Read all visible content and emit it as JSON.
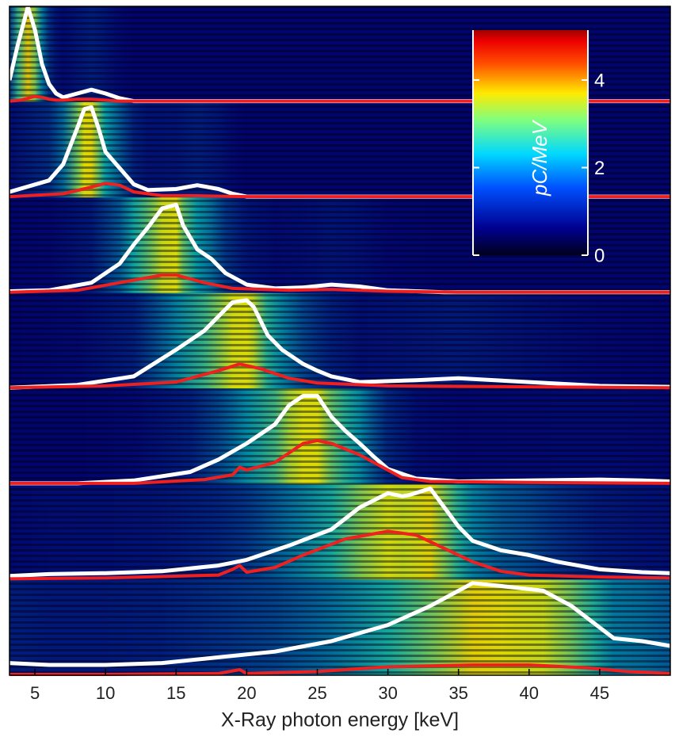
{
  "chart_data": {
    "type": "spectra",
    "xlabel": "X-Ray photon energy [keV]",
    "xlim": [
      3.2,
      50
    ],
    "xticks": [
      5,
      10,
      15,
      20,
      25,
      30,
      35,
      40,
      45
    ],
    "panel_ylim": [
      0,
      100
    ],
    "colorbar": {
      "label": "pC/MeV",
      "clim": [
        0,
        5.14
      ],
      "ticks": [
        0,
        2,
        4
      ]
    },
    "panels": [
      {
        "series": [
          {
            "color": "#ffffff",
            "x": [
              3.2,
              3.8,
              4.5,
              5,
              5.5,
              6,
              6.5,
              7,
              8,
              9,
              10,
              11,
              12,
              50
            ],
            "values": [
              22,
              60,
              99,
              75,
              39,
              18,
              8,
              4,
              8,
              12,
              8,
              3,
              0,
              0
            ]
          },
          {
            "color": "#ee2020",
            "x": [
              3.2,
              4,
              4.5,
              5,
              5.5,
              6,
              6.5,
              7,
              8,
              9,
              10,
              11,
              12,
              50
            ],
            "values": [
              0,
              1,
              3,
              5,
              4,
              2,
              1,
              1,
              2,
              2,
              1,
              0,
              0,
              0
            ]
          }
        ]
      },
      {
        "series": [
          {
            "color": "#ffffff",
            "x": [
              3.2,
              6,
              7,
              8,
              8.5,
              9,
              9.5,
              10,
              11,
              12,
              13,
              15,
              16.5,
              18,
              19,
              20,
              50
            ],
            "values": [
              5,
              17,
              34,
              72,
              92,
              94,
              72,
              47,
              30,
              13,
              7,
              8,
              12,
              8,
              3,
              0,
              0
            ]
          },
          {
            "color": "#ee2020",
            "x": [
              3.2,
              7,
              9,
              10,
              11,
              12,
              14,
              16,
              20,
              50
            ],
            "values": [
              0,
              3,
              10,
              14,
              12,
              5,
              1,
              1,
              0,
              0
            ]
          }
        ]
      },
      {
        "series": [
          {
            "color": "#ffffff",
            "x": [
              3.2,
              6,
              9,
              11,
              12,
              13,
              14,
              15,
              15.5,
              16.5,
              17.5,
              18.5,
              20,
              22,
              24,
              26,
              28,
              30,
              34,
              50
            ],
            "values": [
              1,
              2,
              10,
              30,
              50,
              68,
              88,
              92,
              70,
              45,
              35,
              20,
              8,
              4,
              5,
              8,
              6,
              2,
              0,
              0
            ]
          },
          {
            "color": "#ee2020",
            "x": [
              3.2,
              8,
              11,
              14,
              15,
              17,
              19,
              23,
              26,
              30,
              35,
              50
            ],
            "values": [
              0,
              2,
              10,
              18,
              18,
              10,
              4,
              2,
              3,
              1,
              0,
              0
            ]
          }
        ]
      },
      {
        "series": [
          {
            "color": "#ffffff",
            "x": [
              3.2,
              8,
              12,
              15,
              17,
              18,
              19,
              20,
              20.5,
              21.5,
              22.5,
              24,
              25,
              26,
              28,
              32,
              35,
              40,
              45,
              50
            ],
            "values": [
              0,
              3,
              12,
              40,
              60,
              75,
              90,
              92,
              85,
              55,
              40,
              25,
              18,
              12,
              6,
              8,
              10,
              6,
              2,
              1
            ]
          },
          {
            "color": "#ee2020",
            "x": [
              3.2,
              10,
              15,
              18,
              19.5,
              21,
              23,
              25,
              30,
              50
            ],
            "values": [
              0,
              2,
              6,
              18,
              25,
              20,
              10,
              5,
              2,
              0
            ]
          }
        ]
      },
      {
        "series": [
          {
            "color": "#ffffff",
            "x": [
              3.2,
              8,
              12,
              16,
              18,
              20,
              22,
              23,
              24,
              25,
              26,
              27,
              28,
              29,
              30,
              32,
              35,
              40,
              45,
              48,
              50
            ],
            "values": [
              0,
              0,
              3,
              12,
              25,
              42,
              62,
              82,
              92,
              92,
              70,
              55,
              42,
              28,
              15,
              5,
              2,
              3,
              4,
              3,
              2
            ]
          },
          {
            "color": "#ee2020",
            "x": [
              3.2,
              12,
              17,
              19,
              19.5,
              20,
              22,
              24,
              25,
              26,
              28,
              30,
              31,
              33,
              40,
              50
            ],
            "values": [
              0,
              0,
              4,
              9,
              17,
              14,
              22,
              42,
              45,
              42,
              30,
              14,
              6,
              2,
              1,
              0
            ]
          }
        ]
      },
      {
        "series": [
          {
            "color": "#ffffff",
            "x": [
              3.2,
              6,
              10,
              14,
              18,
              20,
              23,
              26,
              28,
              30,
              31,
              31.5,
              33,
              34,
              35,
              36,
              38,
              40,
              42,
              45,
              48,
              50
            ],
            "values": [
              3,
              5,
              6,
              8,
              14,
              20,
              35,
              52,
              75,
              90,
              87,
              88,
              95,
              75,
              55,
              40,
              30,
              25,
              18,
              10,
              7,
              6
            ]
          },
          {
            "color": "#ee2020",
            "x": [
              3.2,
              10,
              18,
              19,
              19.5,
              20,
              22,
              24,
              27,
              30,
              32,
              34,
              36,
              38,
              40,
              45,
              50
            ],
            "values": [
              0,
              1,
              4,
              10,
              14,
              7,
              12,
              25,
              42,
              50,
              46,
              32,
              18,
              8,
              4,
              2,
              1
            ]
          }
        ]
      },
      {
        "series": [
          {
            "color": "#ffffff",
            "x": [
              3.2,
              6,
              10,
              14,
              18,
              22,
              26,
              30,
              33,
              36,
              38,
              41,
              43,
              44.5,
              46,
              48,
              50
            ],
            "values": [
              12,
              10,
              10,
              12,
              18,
              24,
              35,
              52,
              72,
              96,
              93,
              88,
              72,
              55,
              38,
              35,
              30
            ]
          },
          {
            "color": "#ee2020",
            "x": [
              3.2,
              10,
              18,
              19.5,
              20,
              25,
              30,
              36,
              40,
              44,
              47,
              50
            ],
            "values": [
              0,
              0,
              1,
              5,
              1,
              3,
              8,
              10,
              10,
              7,
              3,
              1
            ]
          }
        ]
      }
    ]
  }
}
